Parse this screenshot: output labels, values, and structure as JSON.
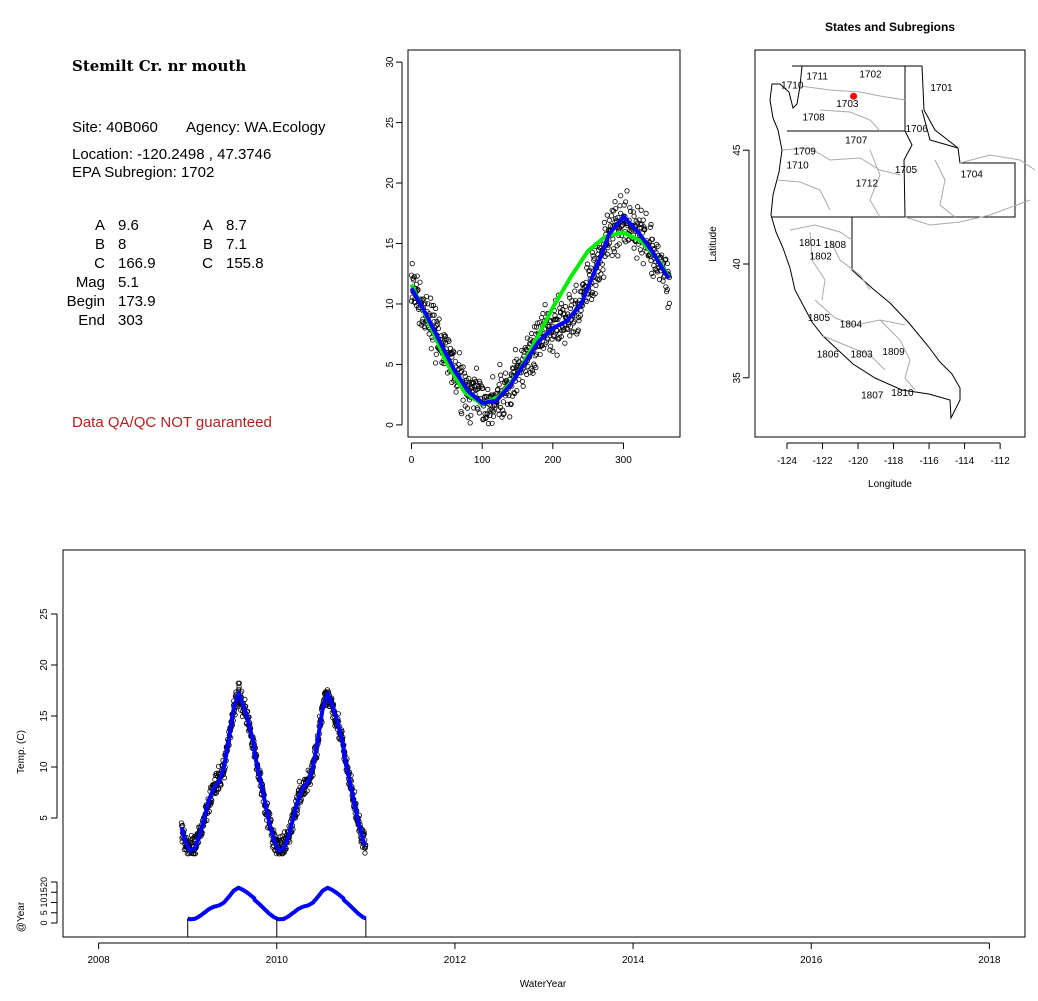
{
  "site_info": {
    "title": "Stemilt Cr. nr mouth",
    "site_label": "Site: 40B060",
    "agency_label": "Agency: WA.Ecology",
    "location_line": "Location: -120.2498 , 47.3746",
    "subregion_line": "EPA Subregion: 1702",
    "params_left": [
      {
        "name": "A",
        "value": "9.6"
      },
      {
        "name": "B",
        "value": "8"
      },
      {
        "name": "C",
        "value": "166.9"
      },
      {
        "name": "Mag",
        "value": "5.1"
      },
      {
        "name": "Begin",
        "value": "173.9"
      },
      {
        "name": "End",
        "value": "303"
      }
    ],
    "params_right": [
      {
        "name": "A",
        "value": "8.7"
      },
      {
        "name": "B",
        "value": "7.1"
      },
      {
        "name": "C",
        "value": "155.8"
      }
    ],
    "qa_note": "Data QA/QC NOT guaranteed"
  },
  "colors": {
    "fit_blue": "#0000ff",
    "fit_green": "#00ee00",
    "site_marker": "#ff0000",
    "qa_text": "#b22222",
    "region_border": "#aaaaaa"
  },
  "map": {
    "title": "States and Subregions",
    "xlabel": "Longitude",
    "ylabel": "Latitude",
    "xticks": [
      "-124",
      "-122",
      "-120",
      "-118",
      "-116",
      "-114",
      "-112"
    ],
    "yticks": [
      "35",
      "40",
      "45"
    ],
    "site": {
      "lon": -120.25,
      "lat": 47.37
    },
    "region_labels": [
      {
        "label": "1711",
        "lon": -122.3,
        "lat": 48.1
      },
      {
        "label": "1702",
        "lon": -119.3,
        "lat": 48.2
      },
      {
        "label": "1710",
        "lon": -123.7,
        "lat": 47.7
      },
      {
        "label": "1701",
        "lon": -115.3,
        "lat": 47.6
      },
      {
        "label": "1703",
        "lon": -120.6,
        "lat": 46.9
      },
      {
        "label": "1708",
        "lon": -122.5,
        "lat": 46.3
      },
      {
        "label": "1706",
        "lon": -116.7,
        "lat": 45.8
      },
      {
        "label": "1707",
        "lon": -120.1,
        "lat": 45.3
      },
      {
        "label": "1709",
        "lon": -123.0,
        "lat": 44.8
      },
      {
        "label": "1710",
        "lon": -123.4,
        "lat": 44.2
      },
      {
        "label": "1705",
        "lon": -117.3,
        "lat": 44.0
      },
      {
        "label": "1704",
        "lon": -113.6,
        "lat": 43.8
      },
      {
        "label": "1712",
        "lon": -119.5,
        "lat": 43.4
      },
      {
        "label": "1801",
        "lon": -122.7,
        "lat": 40.8
      },
      {
        "label": "1808",
        "lon": -121.3,
        "lat": 40.7
      },
      {
        "label": "1802",
        "lon": -122.1,
        "lat": 40.2
      },
      {
        "label": "1805",
        "lon": -122.2,
        "lat": 37.5
      },
      {
        "label": "1804",
        "lon": -120.4,
        "lat": 37.2
      },
      {
        "label": "1806",
        "lon": -121.7,
        "lat": 35.9
      },
      {
        "label": "1803",
        "lon": -119.8,
        "lat": 35.9
      },
      {
        "label": "1809",
        "lon": -118.0,
        "lat": 36.0
      },
      {
        "label": "1807",
        "lon": -119.2,
        "lat": 34.1
      },
      {
        "label": "1810",
        "lon": -117.5,
        "lat": 34.2
      }
    ]
  },
  "chart_data": [
    {
      "type": "scatter",
      "name": "seasonal",
      "title": "",
      "xlabel": "",
      "ylabel": "",
      "xlim": [
        -5,
        380
      ],
      "ylim": [
        -1,
        31
      ],
      "xticks": [
        0,
        100,
        200,
        300
      ],
      "yticks": [
        0,
        5,
        10,
        15,
        20,
        25,
        30
      ],
      "grid": false,
      "points_note": "open circles: daily water temperature vs day of water year",
      "lines": [
        {
          "color": "green",
          "x": [
            0,
            25,
            50,
            75,
            100,
            125,
            150,
            175,
            200,
            225,
            250,
            275,
            300,
            325,
            350,
            365
          ],
          "y": [
            11.6,
            8.4,
            5.1,
            2.7,
            1.7,
            2.4,
            4.2,
            6.9,
            9.7,
            12.2,
            14.4,
            15.6,
            15.9,
            15.2,
            13.6,
            12.1
          ]
        },
        {
          "color": "blue",
          "x": [
            0,
            20,
            40,
            60,
            80,
            100,
            120,
            140,
            160,
            180,
            200,
            220,
            240,
            260,
            280,
            300,
            320,
            340,
            365
          ],
          "y": [
            11.3,
            9.2,
            6.9,
            4.6,
            2.8,
            1.8,
            2.0,
            3.3,
            5.1,
            6.9,
            8.0,
            8.6,
            10.0,
            12.8,
            15.8,
            17.2,
            16.0,
            14.4,
            12.0
          ]
        }
      ]
    },
    {
      "type": "line",
      "name": "timeseries",
      "title": "",
      "xlabel": "WaterYear",
      "ylabel": "Temp. (C)",
      "xlim": [
        2007.6,
        2018.4
      ],
      "ylim": [
        -1.5,
        30
      ],
      "xticks": [
        2008,
        2010,
        2012,
        2014,
        2016,
        2018
      ],
      "yticks": [
        5,
        10,
        15,
        20,
        25
      ],
      "series_x_range": [
        2008.93,
        2011.0
      ],
      "sub_axis": {
        "label": "@Year",
        "yticks": [
          0,
          5,
          10,
          15,
          20
        ],
        "year_marks": [
          2009,
          2010,
          2011
        ]
      }
    }
  ]
}
